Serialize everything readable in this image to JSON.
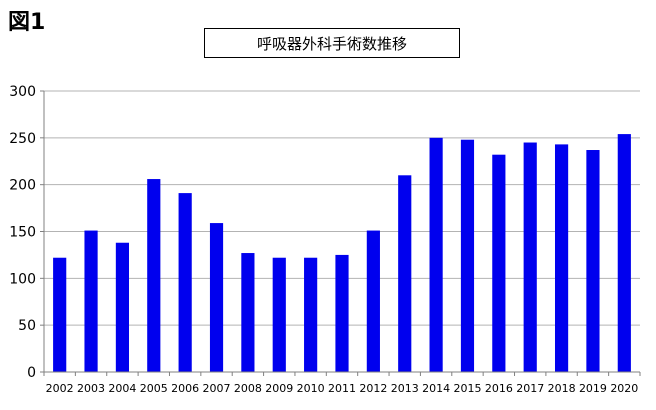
{
  "figure_label": "図1",
  "colors": {
    "bar": "#0000ee",
    "axis": "#808080",
    "grid": "#b3b3b3"
  },
  "chart_data": {
    "type": "bar",
    "title": "呼吸器外科手術数推移",
    "xlabel": "",
    "ylabel": "",
    "categories": [
      "2002",
      "2003",
      "2004",
      "2005",
      "2006",
      "2007",
      "2008",
      "2009",
      "2010",
      "2011",
      "2012",
      "2013",
      "2014",
      "2015",
      "2016",
      "2017",
      "2018",
      "2019",
      "2020"
    ],
    "values": [
      122,
      151,
      138,
      206,
      191,
      159,
      127,
      122,
      122,
      125,
      151,
      210,
      250,
      248,
      232,
      245,
      243,
      237,
      254
    ],
    "ylim": [
      0,
      300
    ],
    "yticks": [
      0,
      50,
      100,
      150,
      200,
      250,
      300
    ],
    "grid": true
  }
}
